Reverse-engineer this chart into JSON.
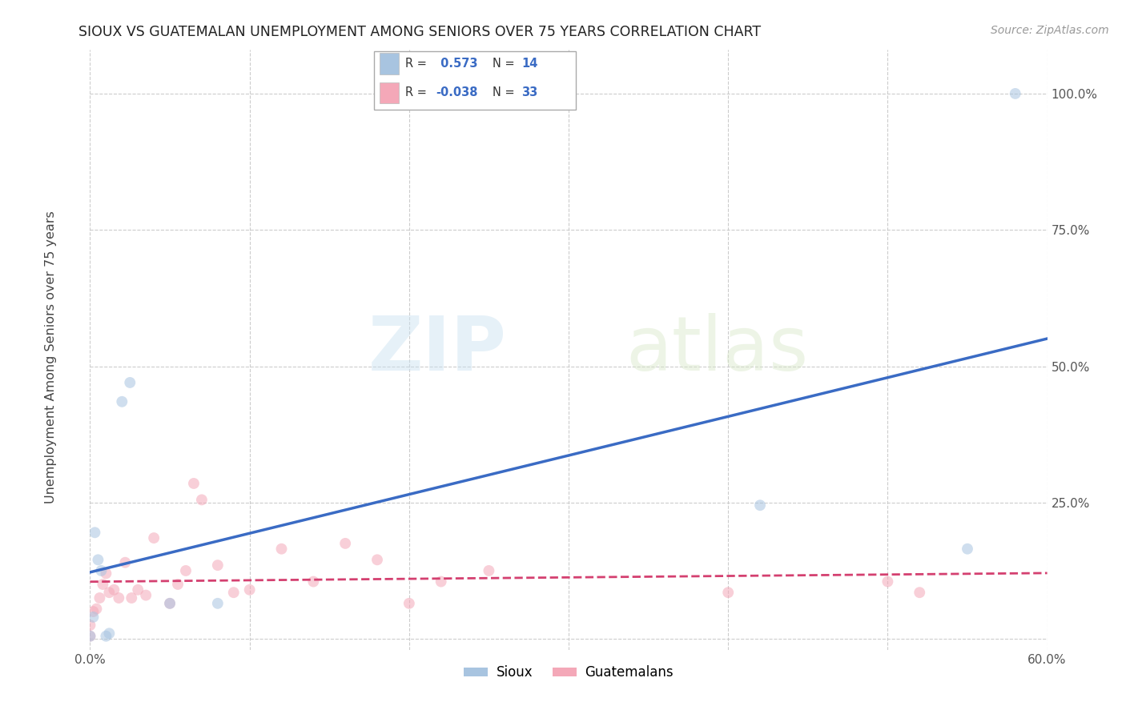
{
  "title": "SIOUX VS GUATEMALAN UNEMPLOYMENT AMONG SENIORS OVER 75 YEARS CORRELATION CHART",
  "source": "Source: ZipAtlas.com",
  "ylabel": "Unemployment Among Seniors over 75 years",
  "xlim": [
    0.0,
    0.6
  ],
  "ylim": [
    -0.02,
    1.08
  ],
  "xticks": [
    0.0,
    0.1,
    0.2,
    0.3,
    0.4,
    0.5,
    0.6
  ],
  "yticks": [
    0.0,
    0.25,
    0.5,
    0.75,
    1.0
  ],
  "yticklabels": [
    "",
    "25.0%",
    "50.0%",
    "75.0%",
    "100.0%"
  ],
  "sioux_color": "#a8c4e0",
  "sioux_line_color": "#3a6bc4",
  "guatemalan_color": "#f4a8b8",
  "guatemalan_line_color": "#d44070",
  "background_color": "#ffffff",
  "grid_color": "#cccccc",
  "watermark_zip": "ZIP",
  "watermark_atlas": "atlas",
  "sioux_R": 0.573,
  "sioux_N": 14,
  "guatemalan_R": -0.038,
  "guatemalan_N": 33,
  "sioux_points_x": [
    0.0,
    0.002,
    0.003,
    0.005,
    0.007,
    0.01,
    0.012,
    0.02,
    0.025,
    0.05,
    0.08,
    0.42,
    0.55,
    0.58
  ],
  "sioux_points_y": [
    0.005,
    0.04,
    0.195,
    0.145,
    0.125,
    0.005,
    0.01,
    0.435,
    0.47,
    0.065,
    0.065,
    0.245,
    0.165,
    1.0
  ],
  "guatemalan_points_x": [
    0.0,
    0.0,
    0.002,
    0.004,
    0.006,
    0.008,
    0.01,
    0.012,
    0.015,
    0.018,
    0.022,
    0.026,
    0.03,
    0.035,
    0.04,
    0.05,
    0.055,
    0.06,
    0.065,
    0.07,
    0.08,
    0.09,
    0.1,
    0.12,
    0.14,
    0.16,
    0.18,
    0.2,
    0.22,
    0.25,
    0.4,
    0.5,
    0.52
  ],
  "guatemalan_points_y": [
    0.005,
    0.025,
    0.05,
    0.055,
    0.075,
    0.1,
    0.12,
    0.085,
    0.09,
    0.075,
    0.14,
    0.075,
    0.09,
    0.08,
    0.185,
    0.065,
    0.1,
    0.125,
    0.285,
    0.255,
    0.135,
    0.085,
    0.09,
    0.165,
    0.105,
    0.175,
    0.145,
    0.065,
    0.105,
    0.125,
    0.085,
    0.105,
    0.085
  ],
  "marker_size": 100,
  "marker_alpha": 0.55
}
